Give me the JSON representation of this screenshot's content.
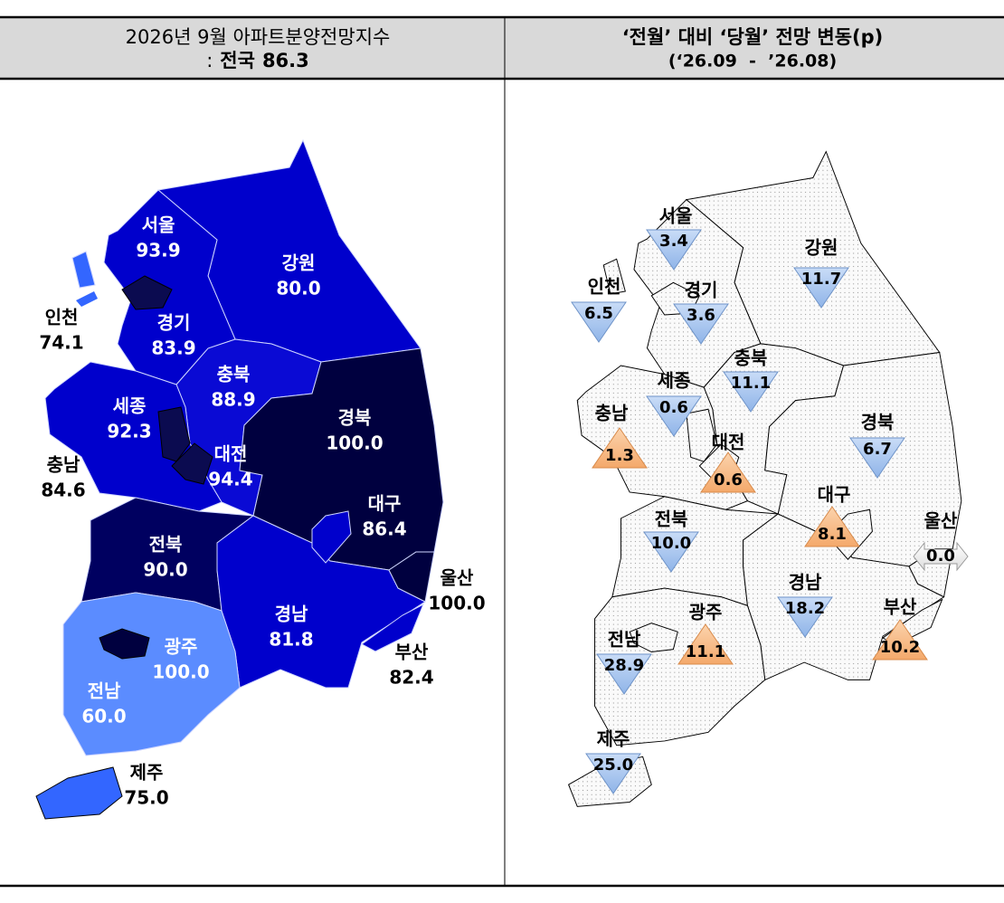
{
  "header": {
    "left": {
      "title": "2026년 9월 아파트분양전망지수",
      "separator": ":",
      "national_label": "전국",
      "national_value": "86.3"
    },
    "right": {
      "title": "‘전월’ 대비 ‘당월’ 전망 변동(p)",
      "period": "(‘26.09  -  ’26.08)"
    }
  },
  "index_map": {
    "regions": [
      {
        "name": "강원",
        "value": "80.0",
        "color": "#0000cc"
      },
      {
        "name": "경기",
        "value": "83.9",
        "color": "#0000cc"
      },
      {
        "name": "충북",
        "value": "88.9",
        "color": "#0a0ad4"
      },
      {
        "name": "충남",
        "value": "84.6",
        "color": "#0000cc"
      },
      {
        "name": "경북",
        "value": "100.0",
        "color": "#00003f"
      },
      {
        "name": "전북",
        "value": "90.0",
        "color": "#000060"
      },
      {
        "name": "경남",
        "value": "81.8",
        "color": "#0000cc"
      },
      {
        "name": "전남",
        "value": "60.0",
        "color": "#5b8cff"
      },
      {
        "name": "서울",
        "value": "93.9",
        "color": "#0b0b50"
      },
      {
        "name": "인천",
        "value": "74.1",
        "color": "#3366ff"
      },
      {
        "name": "세종",
        "value": "92.3",
        "color": "#0b0b50"
      },
      {
        "name": "대전",
        "value": "94.4",
        "color": "#0b0b50"
      },
      {
        "name": "대구",
        "value": "86.4",
        "color": "#0000cc"
      },
      {
        "name": "울산",
        "value": "100.0",
        "color": "#00003f"
      },
      {
        "name": "부산",
        "value": "82.4",
        "color": "#0000cc"
      },
      {
        "name": "광주",
        "value": "100.0",
        "color": "#00003f"
      },
      {
        "name": "제주",
        "value": "75.0",
        "color": "#3366ff"
      }
    ]
  },
  "change_map": {
    "regions": [
      {
        "name": "강원",
        "value": "11.7",
        "direction": "down"
      },
      {
        "name": "경기",
        "value": "3.6",
        "direction": "down"
      },
      {
        "name": "충북",
        "value": "11.1",
        "direction": "down"
      },
      {
        "name": "충남",
        "value": "1.3",
        "direction": "up"
      },
      {
        "name": "경북",
        "value": "6.7",
        "direction": "down"
      },
      {
        "name": "전북",
        "value": "10.0",
        "direction": "down"
      },
      {
        "name": "경남",
        "value": "18.2",
        "direction": "down"
      },
      {
        "name": "전남",
        "value": "28.9",
        "direction": "down"
      },
      {
        "name": "서울",
        "value": "3.4",
        "direction": "down"
      },
      {
        "name": "인천",
        "value": "6.5",
        "direction": "down"
      },
      {
        "name": "세종",
        "value": "0.6",
        "direction": "down"
      },
      {
        "name": "대전",
        "value": "0.6",
        "direction": "up"
      },
      {
        "name": "대구",
        "value": "8.1",
        "direction": "up"
      },
      {
        "name": "울산",
        "value": "0.0",
        "direction": "flat"
      },
      {
        "name": "부산",
        "value": "10.2",
        "direction": "up"
      },
      {
        "name": "광주",
        "value": "11.1",
        "direction": "up"
      },
      {
        "name": "제주",
        "value": "25.0",
        "direction": "down"
      }
    ]
  }
}
